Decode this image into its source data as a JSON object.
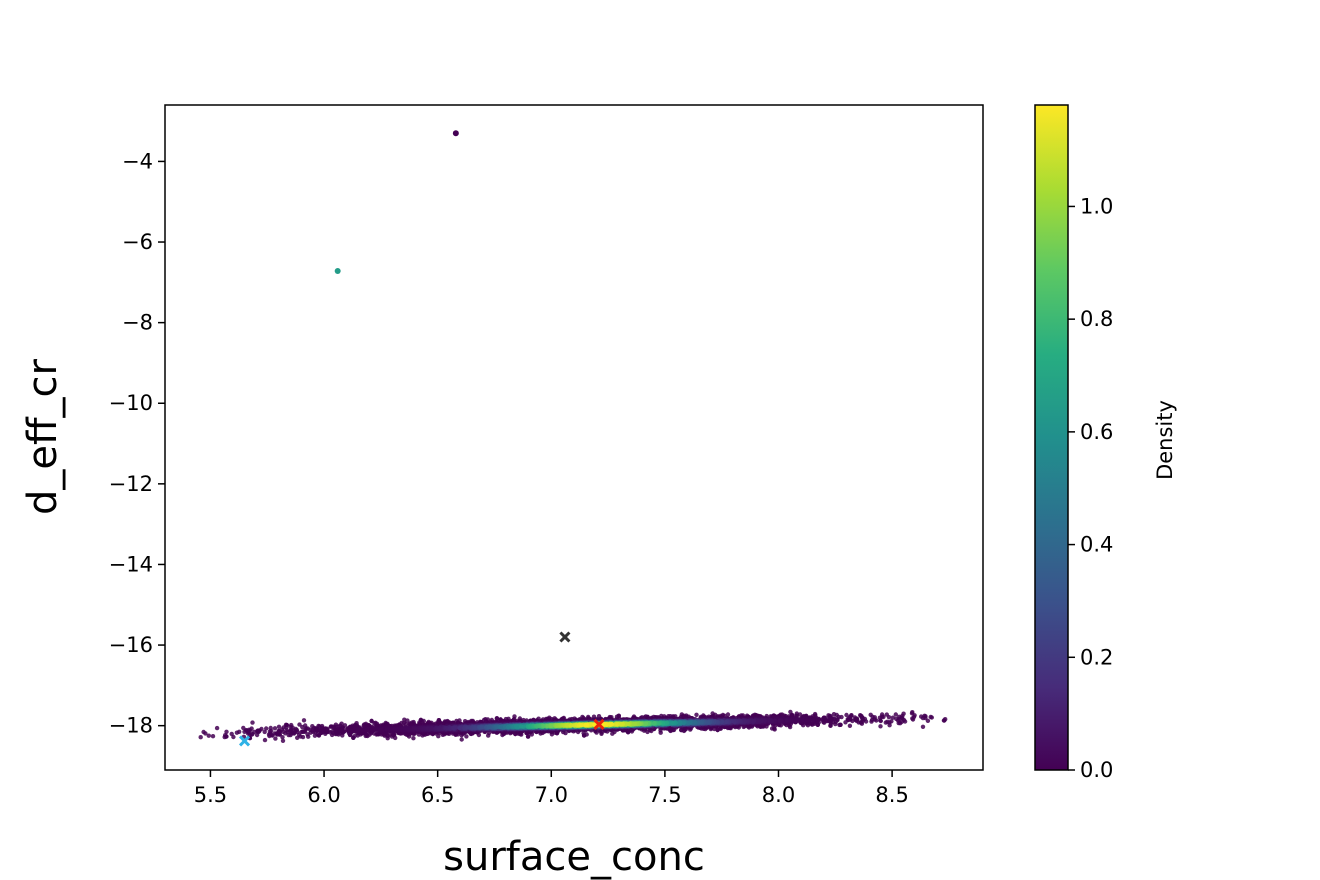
{
  "chart_data": {
    "type": "scatter",
    "title": "",
    "xlabel": "surface_conc",
    "ylabel": "d_eff_cr",
    "xlim": [
      5.3,
      8.9
    ],
    "ylim": [
      -19.1,
      -2.6
    ],
    "x_ticks": [
      5.5,
      6.0,
      6.5,
      7.0,
      7.5,
      8.0,
      8.5
    ],
    "x_tick_labels": [
      "5.5",
      "6.0",
      "6.5",
      "7.0",
      "7.5",
      "8.0",
      "8.5"
    ],
    "y_ticks": [
      -4,
      -6,
      -8,
      -10,
      -12,
      -14,
      -16,
      -18
    ],
    "y_tick_labels": [
      "−4",
      "−6",
      "−8",
      "−10",
      "−12",
      "−14",
      "−16",
      "−18"
    ],
    "grid": false,
    "colormap": "viridis",
    "colorbar": {
      "label": "Density",
      "range": [
        0.0,
        1.18
      ],
      "ticks": [
        0.0,
        0.2,
        0.4,
        0.6,
        0.8,
        1.0
      ],
      "tick_labels": [
        "0.0",
        "0.2",
        "0.4",
        "0.6",
        "0.8",
        "1.0"
      ]
    },
    "density_cloud": {
      "x_range": [
        5.45,
        8.75
      ],
      "y_at_x_min": -18.2,
      "y_at_x_max": -17.78,
      "y_spread": 0.14,
      "peak_x": 7.2,
      "peak_density": 1.18,
      "point_count": 4500
    },
    "outlier_points": [
      {
        "x": 6.58,
        "y": -3.3,
        "density": 0.0
      },
      {
        "x": 6.06,
        "y": -6.72,
        "density": 0.65
      }
    ],
    "markers": [
      {
        "x": 7.06,
        "y": -15.8,
        "color": "#333333",
        "shape": "x"
      },
      {
        "x": 7.21,
        "y": -17.97,
        "color": "#e8220c",
        "shape": "x"
      },
      {
        "x": 5.65,
        "y": -18.38,
        "color": "#2fb2e6",
        "shape": "x"
      }
    ]
  }
}
